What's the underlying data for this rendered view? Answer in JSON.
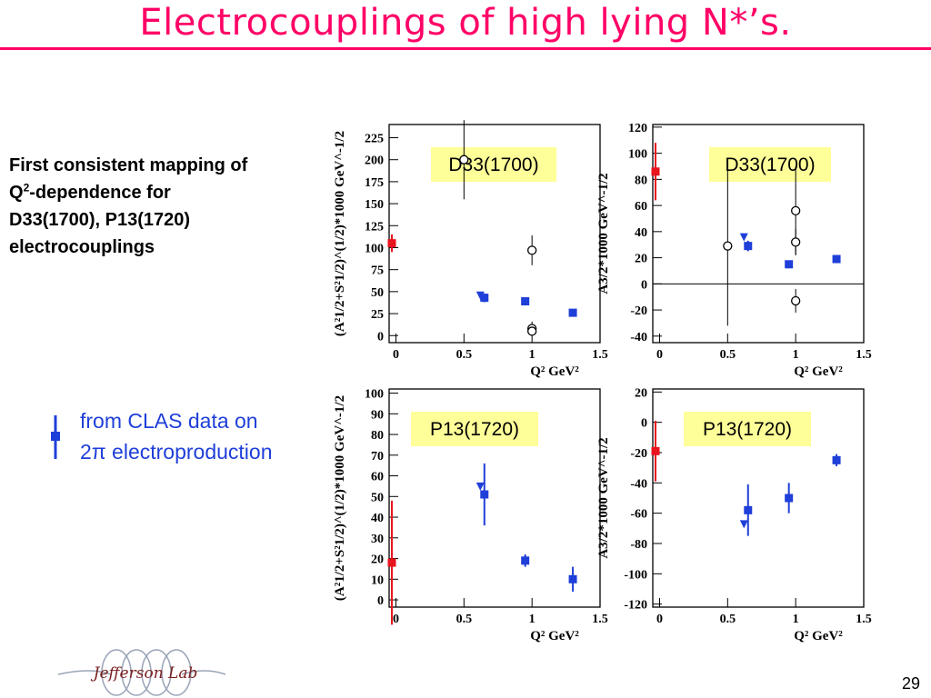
{
  "title": "Electrocouplings of high lying N*’s.",
  "intro": {
    "line1": "First consistent mapping of",
    "line2_prefix": "Q",
    "line2_sup": "2",
    "line2_suffix": "-dependence for",
    "line3": "D33(1700), P13(1720)",
    "line4": "electrocouplings"
  },
  "legend": {
    "line1": "from CLAS data on",
    "line2": "2π electroproduction"
  },
  "logo_text": "Jefferson Lab",
  "page_number": "29",
  "chart_data": [
    {
      "type": "scatter",
      "panel": "top-left",
      "annotation": "D33(1700)",
      "xlabel": "Q² GeV²",
      "ylabel": "(A²1/2+S²1/2)^(1/2)*1000 GeV^-1/2",
      "xlim": [
        -0.05,
        1.5
      ],
      "ylim": [
        -8,
        240
      ],
      "xticks": [
        0,
        0.5,
        1,
        1.5
      ],
      "xtick_labels": [
        "0",
        "0.5",
        "1",
        "1.5"
      ],
      "yticks": [
        0,
        25,
        50,
        75,
        100,
        125,
        150,
        175,
        200,
        225
      ],
      "ytick_labels": [
        "0",
        "25",
        "50",
        "75",
        "100",
        "125",
        "150",
        "175",
        "200",
        "225"
      ],
      "zero_line": false,
      "series": [
        {
          "marker": "square",
          "color": "#e8141e",
          "points": [
            {
              "x": -0.03,
              "y": 105,
              "err": 10
            }
          ]
        },
        {
          "marker": "square",
          "color": "#1f3fd9",
          "points": [
            {
              "x": 0.65,
              "y": 43,
              "err": 5
            },
            {
              "x": 0.95,
              "y": 39,
              "err": 2
            },
            {
              "x": 1.3,
              "y": 26,
              "err": 2
            }
          ]
        },
        {
          "marker": "triangle",
          "color": "#1f3fd9",
          "points": [
            {
              "x": 0.62,
              "y": 46,
              "err": 0
            }
          ]
        },
        {
          "marker": "circle",
          "color": "#000000",
          "points": [
            {
              "x": 0.5,
              "y": 200,
              "err": 45
            },
            {
              "x": 1.0,
              "y": 97,
              "err": 17
            },
            {
              "x": 1.0,
              "y": 8,
              "err": 8
            },
            {
              "x": 1.0,
              "y": 5,
              "err": 3
            }
          ]
        }
      ]
    },
    {
      "type": "scatter",
      "panel": "top-right",
      "annotation": "D33(1700)",
      "xlabel": "Q² GeV²",
      "ylabel": "A3/2*1000 GeV^-1/2",
      "xlim": [
        -0.05,
        1.5
      ],
      "ylim": [
        -45,
        122
      ],
      "xticks": [
        0,
        0.5,
        1,
        1.5
      ],
      "xtick_labels": [
        "0",
        "0.5",
        "1",
        "1.5"
      ],
      "yticks": [
        -40,
        -20,
        0,
        20,
        40,
        60,
        80,
        100,
        120
      ],
      "ytick_labels": [
        "-40",
        "-20",
        "0",
        "20",
        "40",
        "60",
        "80",
        "100",
        "120"
      ],
      "zero_line": true,
      "series": [
        {
          "marker": "square",
          "color": "#e8141e",
          "points": [
            {
              "x": -0.03,
              "y": 86,
              "err": 22
            }
          ]
        },
        {
          "marker": "square",
          "color": "#1f3fd9",
          "points": [
            {
              "x": 0.65,
              "y": 29,
              "err": 4
            },
            {
              "x": 0.95,
              "y": 15,
              "err": 3
            },
            {
              "x": 1.3,
              "y": 19,
              "err": 3
            }
          ]
        },
        {
          "marker": "triangle",
          "color": "#1f3fd9",
          "points": [
            {
              "x": 0.62,
              "y": 36,
              "err": 0
            }
          ]
        },
        {
          "marker": "circle",
          "color": "#000000",
          "points": [
            {
              "x": 0.5,
              "y": 29,
              "err": 61
            },
            {
              "x": 1.0,
              "y": 56,
              "err": 34
            },
            {
              "x": 1.0,
              "y": 32,
              "err": 10
            },
            {
              "x": 1.0,
              "y": -13,
              "err": 9
            }
          ]
        }
      ]
    },
    {
      "type": "scatter",
      "panel": "bottom-left",
      "annotation": "P13(1720)",
      "xlabel": "Q² GeV²",
      "ylabel": "(A²1/2+S²1/2)^(1/2)*1000 GeV^-1/2",
      "xlim": [
        -0.05,
        1.5
      ],
      "ylim": [
        -3.5,
        102
      ],
      "xticks": [
        0,
        0.5,
        1,
        1.5
      ],
      "xtick_labels": [
        "0",
        "0.5",
        "1",
        "1.5"
      ],
      "yticks": [
        0,
        10,
        20,
        30,
        40,
        50,
        60,
        70,
        80,
        90,
        100
      ],
      "ytick_labels": [
        "0",
        "10",
        "20",
        "30",
        "40",
        "50",
        "60",
        "70",
        "80",
        "90",
        "100"
      ],
      "zero_line": false,
      "series": [
        {
          "marker": "square",
          "color": "#e8141e",
          "points": [
            {
              "x": -0.03,
              "y": 18,
              "err": 30
            }
          ]
        },
        {
          "marker": "square",
          "color": "#1f3fd9",
          "points": [
            {
              "x": 0.65,
              "y": 51,
              "err": 15
            },
            {
              "x": 0.95,
              "y": 19,
              "err": 3
            },
            {
              "x": 1.3,
              "y": 10,
              "err": 6
            }
          ]
        },
        {
          "marker": "triangle",
          "color": "#1f3fd9",
          "points": [
            {
              "x": 0.62,
              "y": 55,
              "err": 0
            }
          ]
        }
      ]
    },
    {
      "type": "scatter",
      "panel": "bottom-right",
      "annotation": "P13(1720)",
      "xlabel": "Q² GeV²",
      "ylabel": "A3/2*1000 GeV^-1/2",
      "xlim": [
        -0.05,
        1.5
      ],
      "ylim": [
        -122,
        22
      ],
      "xticks": [
        0,
        0.5,
        1,
        1.5
      ],
      "xtick_labels": [
        "0",
        "0.5",
        "1",
        "1.5"
      ],
      "yticks": [
        -120,
        -100,
        -80,
        -60,
        -40,
        -20,
        0,
        20
      ],
      "ytick_labels": [
        "-120",
        "-100",
        "-80",
        "-60",
        "-40",
        "-20",
        "0",
        "20"
      ],
      "zero_line": false,
      "series": [
        {
          "marker": "square",
          "color": "#e8141e",
          "points": [
            {
              "x": -0.03,
              "y": -19,
              "err": 20
            }
          ]
        },
        {
          "marker": "square",
          "color": "#1f3fd9",
          "points": [
            {
              "x": 0.65,
              "y": -58,
              "err": 17
            },
            {
              "x": 0.95,
              "y": -50,
              "err": 10
            },
            {
              "x": 1.3,
              "y": -25,
              "err": 4
            }
          ]
        },
        {
          "marker": "triangle",
          "color": "#1f3fd9",
          "points": [
            {
              "x": 0.62,
              "y": -67,
              "err": 0
            }
          ]
        }
      ]
    }
  ]
}
